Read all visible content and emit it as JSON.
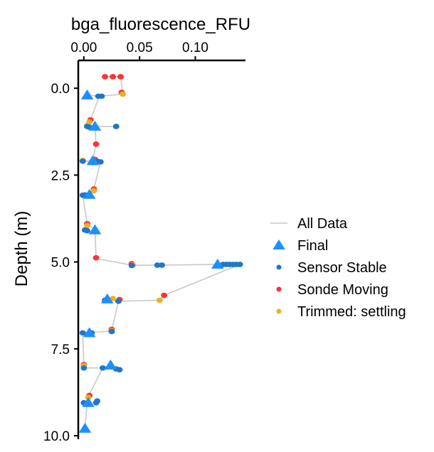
{
  "chart_data": {
    "type": "scatter",
    "xlabel": "bga_fluorescence_RFU",
    "ylabel": "Depth (m)",
    "x_axis_position": "top",
    "y_reversed": true,
    "xlim": [
      -0.005,
      0.145
    ],
    "ylim": [
      -0.8,
      10.1
    ],
    "x_ticks": [
      {
        "v": 0.0,
        "label": "0.00"
      },
      {
        "v": 0.05,
        "label": "0.05"
      },
      {
        "v": 0.1,
        "label": "0.10"
      }
    ],
    "y_ticks": [
      {
        "v": 0.0,
        "label": "0.0"
      },
      {
        "v": 2.5,
        "label": "2.5"
      },
      {
        "v": 5.0,
        "label": "5.0"
      },
      {
        "v": 7.5,
        "label": "7.5"
      },
      {
        "v": 10.0,
        "label": "10.0"
      }
    ],
    "grid": false,
    "legend": {
      "position": "right",
      "entries": [
        {
          "label": "All Data",
          "shape": "line",
          "color": "#c8c8c8"
        },
        {
          "label": "Final",
          "shape": "triangle",
          "color": "#1e8fff"
        },
        {
          "label": "Sensor Stable",
          "shape": "dot",
          "color": "#1f77c9"
        },
        {
          "label": "Sonde Moving",
          "shape": "dot",
          "color": "#ff3333"
        },
        {
          "label": "Trimmed: settling",
          "shape": "dot",
          "color": "#f0b020"
        }
      ]
    },
    "all_data_path": [
      [
        0.019,
        -0.33
      ],
      [
        0.026,
        -0.33
      ],
      [
        0.033,
        -0.33
      ],
      [
        0.035,
        0.17
      ],
      [
        0.014,
        0.23
      ],
      [
        0.003,
        0.2
      ],
      [
        0.014,
        0.23
      ],
      [
        0.006,
        0.91
      ],
      [
        0.004,
        1.1
      ],
      [
        0.01,
        1.1
      ],
      [
        0.029,
        1.1
      ],
      [
        0.01,
        1.1
      ],
      [
        0.011,
        1.61
      ],
      [
        0.008,
        2.09
      ],
      [
        -0.001,
        2.1
      ],
      [
        0.015,
        2.12
      ],
      [
        0.009,
        2.9
      ],
      [
        0.005,
        3.06
      ],
      [
        -0.001,
        3.08
      ],
      [
        0.003,
        3.9
      ],
      [
        0.01,
        4.08
      ],
      [
        0.011,
        4.9
      ],
      [
        0.043,
        5.09
      ],
      [
        0.068,
        5.09
      ],
      [
        0.12,
        5.07
      ],
      [
        0.14,
        5.07
      ],
      [
        0.072,
        5.96
      ],
      [
        0.068,
        6.1
      ],
      [
        0.031,
        6.13
      ],
      [
        0.021,
        6.07
      ],
      [
        0.031,
        6.13
      ],
      [
        0.025,
        6.98
      ],
      [
        0.005,
        7.04
      ],
      [
        -0.001,
        7.04
      ],
      [
        0.0,
        7.97
      ],
      [
        0.0,
        8.05
      ],
      [
        0.017,
        8.05
      ],
      [
        0.024,
        7.97
      ],
      [
        0.032,
        8.1
      ],
      [
        0.017,
        8.05
      ],
      [
        0.004,
        8.86
      ],
      [
        0.003,
        9.05
      ],
      [
        0.001,
        9.79
      ]
    ],
    "series": [
      {
        "name": "Sonde Moving",
        "color": "#ff3333",
        "points": [
          [
            0.019,
            -0.33
          ],
          [
            0.026,
            -0.33
          ],
          [
            0.033,
            -0.33
          ],
          [
            0.034,
            0.12
          ],
          [
            0.006,
            0.91
          ],
          [
            0.011,
            1.61
          ],
          [
            0.01,
            2.05
          ],
          [
            0.009,
            2.9
          ],
          [
            0.003,
            3.9
          ],
          [
            0.011,
            4.88
          ],
          [
            0.043,
            5.05
          ],
          [
            0.072,
            5.96
          ],
          [
            0.032,
            6.08
          ],
          [
            0.025,
            6.94
          ],
          [
            0.0,
            7.95
          ],
          [
            0.005,
            8.84
          ]
        ]
      },
      {
        "name": "Trimmed: settling",
        "color": "#f0b020",
        "points": [
          [
            0.035,
            0.17
          ],
          [
            0.005,
            0.97
          ],
          [
            0.003,
            1.08
          ],
          [
            -0.001,
            2.08
          ],
          [
            0.009,
            2.95
          ],
          [
            0.003,
            3.95
          ],
          [
            0.044,
            5.09
          ],
          [
            0.068,
            6.1
          ],
          [
            0.026,
            6.05
          ],
          [
            0.025,
            6.98
          ],
          [
            0.0,
            7.98
          ],
          [
            0.004,
            8.9
          ]
        ]
      },
      {
        "name": "Sensor Stable",
        "color": "#1f77c9",
        "points": [
          [
            0.013,
            0.23
          ],
          [
            0.016,
            0.23
          ],
          [
            0.003,
            1.1
          ],
          [
            0.005,
            1.12
          ],
          [
            0.029,
            1.1
          ],
          [
            -0.001,
            2.1
          ],
          [
            0.015,
            2.12
          ],
          [
            0.012,
            2.1
          ],
          [
            -0.001,
            3.08
          ],
          [
            0.001,
            3.07
          ],
          [
            0.001,
            4.08
          ],
          [
            0.003,
            4.1
          ],
          [
            0.043,
            5.1
          ],
          [
            0.066,
            5.09
          ],
          [
            0.07,
            5.09
          ],
          [
            0.125,
            5.07
          ],
          [
            0.128,
            5.07
          ],
          [
            0.131,
            5.07
          ],
          [
            0.134,
            5.07
          ],
          [
            0.137,
            5.07
          ],
          [
            0.14,
            5.07
          ],
          [
            0.031,
            6.13
          ],
          [
            0.019,
            6.1
          ],
          [
            0.025,
            7.0
          ],
          [
            -0.001,
            7.04
          ],
          [
            0.007,
            7.04
          ],
          [
            0.0,
            8.05
          ],
          [
            0.017,
            8.05
          ],
          [
            0.029,
            8.08
          ],
          [
            0.032,
            8.1
          ],
          [
            0.0,
            9.05
          ],
          [
            0.011,
            9.05
          ],
          [
            0.012,
            9.0
          ]
        ]
      },
      {
        "name": "Final",
        "color": "#1e8fff",
        "points": [
          [
            0.003,
            0.2
          ],
          [
            0.01,
            1.1
          ],
          [
            0.008,
            2.09
          ],
          [
            0.005,
            3.06
          ],
          [
            0.01,
            4.08
          ],
          [
            0.12,
            5.07
          ],
          [
            0.021,
            6.07
          ],
          [
            0.005,
            7.04
          ],
          [
            0.024,
            7.97
          ],
          [
            0.004,
            9.05
          ],
          [
            0.001,
            9.79
          ]
        ]
      }
    ]
  }
}
